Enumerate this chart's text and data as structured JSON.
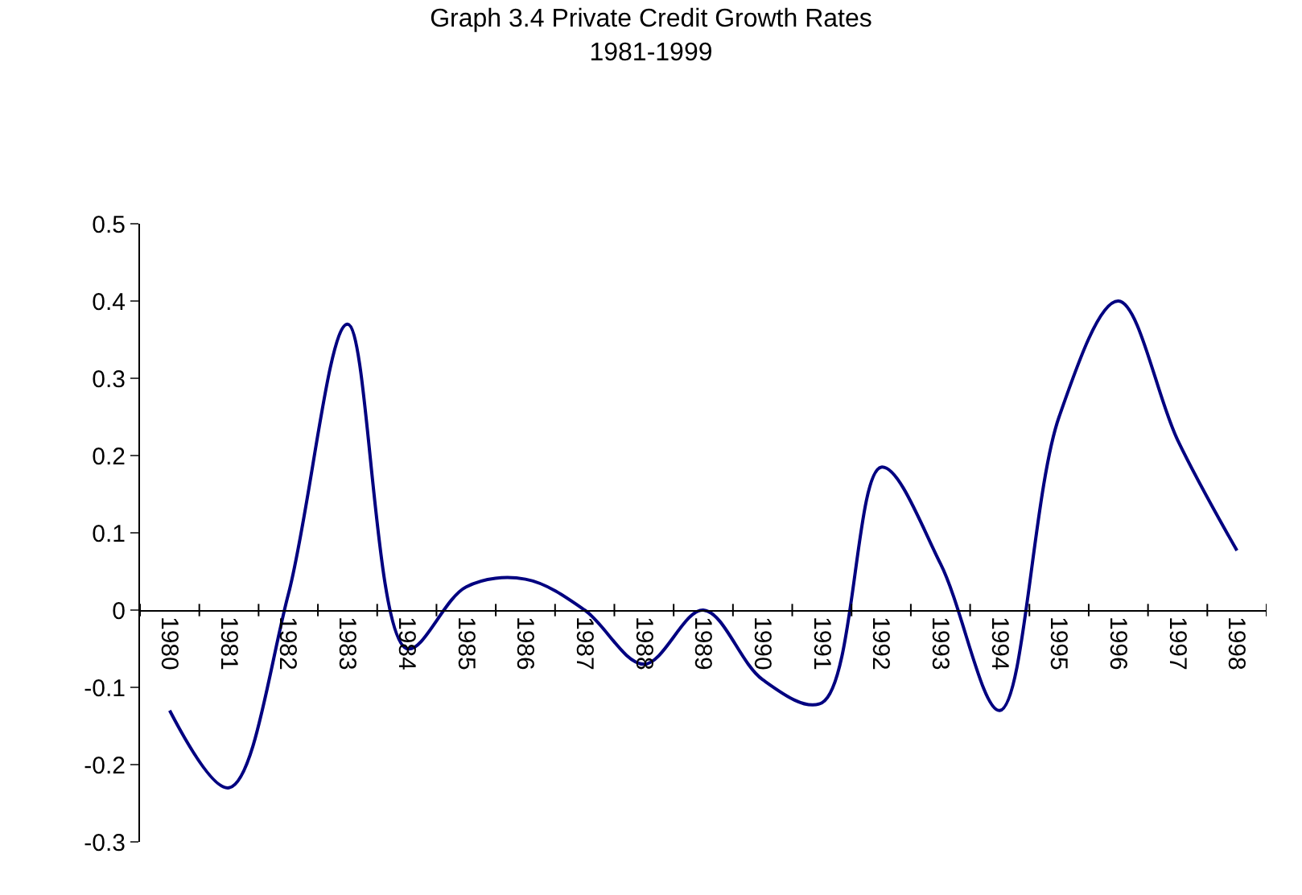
{
  "chart_data": {
    "type": "line",
    "title": "Graph 3.4 Private Credit Growth Rates\n1981-1999",
    "categories": [
      "1980",
      "1981",
      "1982",
      "1983",
      "1984",
      "1985",
      "1986",
      "1987",
      "1988",
      "1989",
      "1990",
      "1991",
      "1992",
      "1993",
      "1994",
      "1995",
      "1996",
      "1997",
      "1998"
    ],
    "series": [
      {
        "color": "#000080",
        "values": [
          -0.13,
          -0.23,
          0.02,
          0.37,
          -0.05,
          0.03,
          0.04,
          0.0,
          -0.07,
          0.0,
          -0.09,
          -0.12,
          0.185,
          0.06,
          -0.13,
          0.25,
          0.4,
          0.22,
          0.077
        ]
      }
    ],
    "ylim": [
      -0.3,
      0.5
    ],
    "yticks": [
      -0.3,
      -0.2,
      -0.1,
      0,
      0.1,
      0.2,
      0.3,
      0.4,
      0.5
    ],
    "marker": "none",
    "line_style": "solid"
  }
}
